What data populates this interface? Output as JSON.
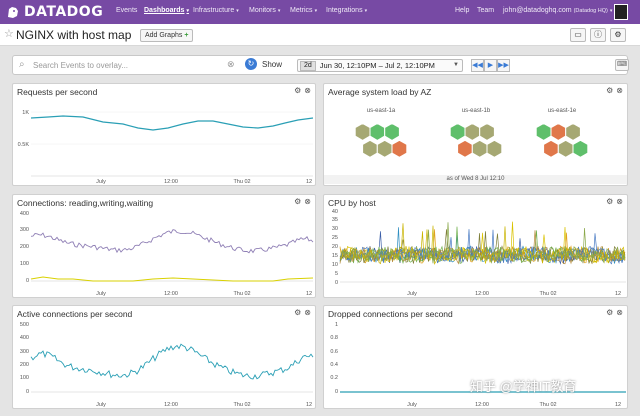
{
  "colors": {
    "nav_bg": "#774aa4",
    "line_blue": "#2a9fb5",
    "line_purple": "#8f7fb5",
    "line_yellow": "#d9d100",
    "hex_green": "#5fbf6b",
    "hex_olive": "#a6a873",
    "hex_orange": "#e0774a"
  },
  "nav": {
    "logo": "DATADOG",
    "items": [
      "Events",
      "Dashboards",
      "Infrastructure",
      "Monitors",
      "Metrics",
      "Integrations"
    ],
    "help": "Help",
    "team": "Team",
    "user": "john@datadoghq.com",
    "org": "(Datadog HQ)"
  },
  "page": {
    "title": "NGINX with host map",
    "add_graphs": "Add Graphs"
  },
  "search": {
    "placeholder": "Search Events to overlay...",
    "show_label": "Show",
    "range_badge": "2d",
    "range_text": "Jun 30, 12:10PM – Jul 2, 12:10PM"
  },
  "panels": {
    "requests": {
      "title": "Requests per second",
      "yticks": [
        "1K",
        "0.5K"
      ],
      "xticks": [
        "July",
        "12:00",
        "Thu 02",
        "12"
      ]
    },
    "hostmap": {
      "title": "Average system load by AZ",
      "zones": [
        "us-east-1a",
        "us-east-1b",
        "us-east-1e"
      ],
      "footer": "as of Wed 8 Jul 12:10"
    },
    "connections": {
      "title": "Connections: reading,writing,waiting",
      "yticks": [
        "400",
        "300",
        "200",
        "100",
        "0"
      ],
      "xticks": [
        "July",
        "12:00",
        "Thu 02",
        "12"
      ]
    },
    "cpu": {
      "title": "CPU by host",
      "yticks": [
        "40",
        "35",
        "30",
        "25",
        "20",
        "15",
        "10",
        "5",
        "0"
      ],
      "xticks": [
        "July",
        "12:00",
        "Thu 02",
        "12"
      ]
    },
    "active": {
      "title": "Active connections per second",
      "yticks": [
        "500",
        "400",
        "300",
        "200",
        "100",
        "0"
      ],
      "xticks": [
        "July",
        "12:00",
        "Thu 02",
        "12"
      ]
    },
    "dropped": {
      "title": "Dropped connections per second",
      "yticks": [
        "1",
        "0.8",
        "0.6",
        "0.4",
        "0.2",
        "0"
      ],
      "xticks": [
        "July",
        "12:00",
        "Thu 02",
        "12"
      ]
    }
  },
  "watermark": "知乎 @学神IT教育"
}
